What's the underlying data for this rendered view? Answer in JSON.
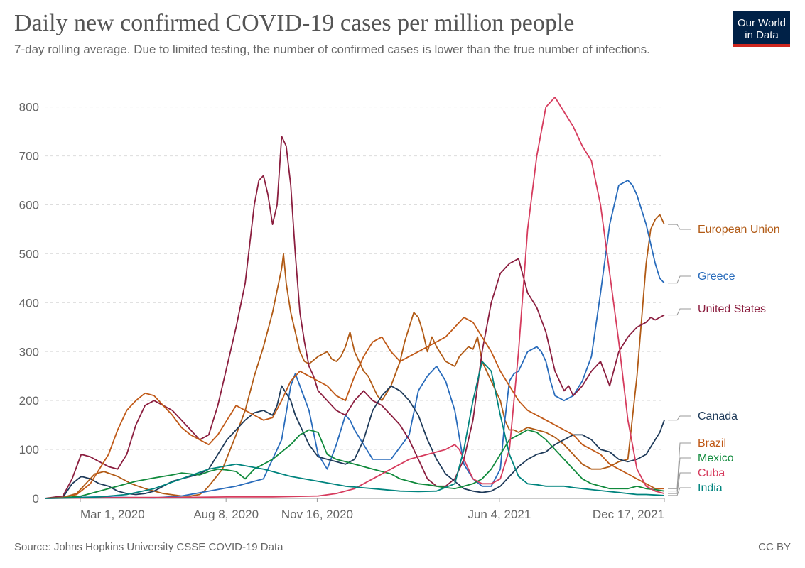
{
  "title": "Daily new confirmed COVID-19 cases per million people",
  "subtitle": "7-day rolling average. Due to limited testing, the number of confirmed cases is lower than the true number of infections.",
  "logo": {
    "line1": "Our World",
    "line2": "in Data"
  },
  "source": "Source: Johns Hopkins University CSSE COVID-19 Data",
  "license": "CC BY",
  "chart_data": {
    "type": "line",
    "title": "Daily new confirmed COVID-19 cases per million people",
    "xlabel": "",
    "ylabel": "",
    "ylim": [
      0,
      830
    ],
    "xlim": [
      0,
      680
    ],
    "x_unit": "days since 2020-01-22",
    "yticks": [
      0,
      100,
      200,
      300,
      400,
      500,
      600,
      700,
      800
    ],
    "xticks": [
      {
        "label": "Mar 1, 2020",
        "x": 39
      },
      {
        "label": "Aug 8, 2020",
        "x": 199
      },
      {
        "label": "Nov 16, 2020",
        "x": 299
      },
      {
        "label": "Jun 4, 2021",
        "x": 499
      },
      {
        "label": "Dec 17, 2021",
        "x": 695
      }
    ],
    "series": [
      {
        "name": "European Union",
        "color": "#b15a15",
        "x": [
          0,
          20,
          35,
          45,
          55,
          65,
          80,
          95,
          110,
          130,
          150,
          160,
          170,
          175,
          180,
          195,
          210,
          220,
          230,
          240,
          250,
          260,
          262,
          265,
          270,
          275,
          280,
          285,
          290,
          300,
          310,
          315,
          320,
          325,
          330,
          335,
          340,
          345,
          350,
          355,
          360,
          365,
          370,
          380,
          390,
          395,
          400,
          405,
          410,
          415,
          420,
          425,
          430,
          440,
          450,
          455,
          460,
          465,
          470,
          475,
          480,
          490,
          500,
          505,
          510,
          515,
          520,
          525,
          530,
          540,
          550,
          560,
          570,
          580,
          590,
          600,
          610,
          620,
          630,
          640,
          650,
          660,
          665,
          670,
          675,
          680
        ],
        "y": [
          0,
          2,
          10,
          30,
          50,
          55,
          45,
          30,
          20,
          10,
          5,
          5,
          8,
          15,
          25,
          60,
          130,
          180,
          250,
          310,
          380,
          470,
          500,
          440,
          380,
          340,
          300,
          280,
          275,
          290,
          300,
          285,
          280,
          290,
          310,
          340,
          300,
          280,
          260,
          250,
          230,
          210,
          200,
          230,
          280,
          320,
          350,
          380,
          370,
          340,
          300,
          330,
          310,
          280,
          270,
          290,
          300,
          310,
          305,
          330,
          280,
          240,
          200,
          160,
          140,
          140,
          135,
          140,
          145,
          140,
          135,
          125,
          110,
          90,
          70,
          60,
          60,
          65,
          75,
          80,
          250,
          480,
          550,
          570,
          580,
          560
        ],
        "label": "European Union"
      },
      {
        "name": "Greece",
        "color": "#286bbb",
        "x": [
          0,
          30,
          60,
          90,
          120,
          150,
          180,
          210,
          240,
          260,
          270,
          275,
          280,
          290,
          300,
          305,
          310,
          320,
          330,
          335,
          340,
          350,
          360,
          380,
          400,
          410,
          420,
          430,
          440,
          450,
          460,
          470,
          480,
          490,
          500,
          505,
          510,
          515,
          520,
          525,
          530,
          540,
          545,
          550,
          555,
          560,
          570,
          580,
          590,
          600,
          610,
          620,
          630,
          640,
          645,
          650,
          660,
          665,
          670,
          675,
          680
        ],
        "y": [
          0,
          2,
          3,
          2,
          1,
          5,
          15,
          25,
          40,
          120,
          230,
          255,
          230,
          180,
          90,
          75,
          60,
          110,
          170,
          160,
          140,
          110,
          80,
          80,
          130,
          220,
          250,
          270,
          240,
          180,
          70,
          40,
          25,
          25,
          60,
          160,
          240,
          255,
          260,
          280,
          300,
          310,
          300,
          280,
          240,
          210,
          200,
          210,
          240,
          290,
          420,
          560,
          640,
          650,
          640,
          620,
          560,
          520,
          480,
          450,
          440
        ],
        "label": "Greece"
      },
      {
        "name": "United States",
        "color": "#8b1e3f",
        "x": [
          0,
          20,
          30,
          40,
          50,
          60,
          70,
          80,
          90,
          100,
          110,
          120,
          130,
          140,
          150,
          160,
          170,
          180,
          190,
          200,
          210,
          220,
          225,
          230,
          235,
          240,
          245,
          250,
          255,
          260,
          265,
          270,
          275,
          280,
          285,
          290,
          295,
          300,
          310,
          315,
          320,
          330,
          340,
          350,
          360,
          370,
          380,
          390,
          400,
          410,
          420,
          430,
          440,
          450,
          460,
          470,
          480,
          490,
          500,
          510,
          520,
          530,
          540,
          550,
          560,
          570,
          575,
          580,
          590,
          600,
          610,
          620,
          630,
          640,
          650,
          660,
          665,
          670,
          675,
          680
        ],
        "y": [
          0,
          5,
          40,
          90,
          85,
          75,
          65,
          60,
          90,
          150,
          190,
          200,
          190,
          180,
          160,
          140,
          120,
          130,
          190,
          270,
          350,
          440,
          520,
          600,
          650,
          660,
          620,
          560,
          600,
          740,
          720,
          640,
          500,
          380,
          320,
          270,
          250,
          220,
          200,
          190,
          180,
          170,
          200,
          220,
          200,
          190,
          170,
          150,
          120,
          80,
          40,
          25,
          25,
          40,
          80,
          160,
          300,
          400,
          460,
          480,
          490,
          420,
          390,
          340,
          260,
          220,
          230,
          210,
          230,
          260,
          280,
          230,
          300,
          330,
          350,
          360,
          370,
          365,
          370,
          375
        ],
        "label": "United States"
      },
      {
        "name": "Canada",
        "color": "#1f3b5a",
        "x": [
          0,
          20,
          30,
          40,
          50,
          60,
          70,
          80,
          90,
          100,
          110,
          120,
          130,
          140,
          150,
          160,
          170,
          180,
          190,
          200,
          210,
          220,
          230,
          240,
          250,
          255,
          260,
          265,
          270,
          275,
          280,
          290,
          300,
          310,
          320,
          330,
          340,
          350,
          360,
          370,
          380,
          390,
          400,
          410,
          420,
          430,
          440,
          450,
          460,
          470,
          480,
          490,
          500,
          510,
          520,
          530,
          540,
          550,
          560,
          570,
          580,
          590,
          600,
          610,
          620,
          630,
          640,
          650,
          660,
          665,
          670,
          675,
          680
        ],
        "y": [
          0,
          2,
          30,
          45,
          40,
          30,
          25,
          15,
          10,
          8,
          10,
          15,
          25,
          35,
          40,
          45,
          50,
          60,
          90,
          120,
          140,
          160,
          175,
          180,
          170,
          190,
          230,
          215,
          200,
          170,
          150,
          110,
          85,
          80,
          75,
          70,
          80,
          120,
          180,
          210,
          230,
          220,
          200,
          170,
          120,
          80,
          50,
          35,
          20,
          15,
          12,
          15,
          25,
          45,
          65,
          80,
          90,
          95,
          110,
          120,
          130,
          130,
          120,
          100,
          95,
          80,
          75,
          80,
          90,
          105,
          120,
          135,
          160
        ],
        "label": "Canada"
      },
      {
        "name": "Brazil",
        "color": "#c05917",
        "x": [
          0,
          20,
          35,
          50,
          60,
          70,
          80,
          90,
          100,
          110,
          120,
          130,
          140,
          150,
          160,
          170,
          180,
          190,
          200,
          210,
          220,
          230,
          240,
          250,
          260,
          270,
          280,
          290,
          300,
          310,
          320,
          330,
          340,
          350,
          360,
          370,
          380,
          390,
          400,
          410,
          420,
          430,
          440,
          450,
          460,
          470,
          480,
          490,
          500,
          510,
          520,
          530,
          540,
          550,
          560,
          570,
          580,
          590,
          600,
          610,
          620,
          630,
          640,
          650,
          660,
          670,
          680
        ],
        "y": [
          0,
          2,
          8,
          30,
          60,
          90,
          140,
          180,
          200,
          215,
          210,
          190,
          170,
          145,
          130,
          120,
          110,
          130,
          160,
          190,
          180,
          170,
          160,
          165,
          200,
          240,
          260,
          250,
          240,
          230,
          210,
          200,
          250,
          290,
          320,
          330,
          300,
          280,
          290,
          300,
          310,
          320,
          330,
          350,
          370,
          360,
          330,
          300,
          260,
          230,
          200,
          180,
          170,
          160,
          150,
          140,
          130,
          110,
          100,
          90,
          70,
          60,
          50,
          40,
          30,
          20,
          20
        ],
        "label": "Brazil"
      },
      {
        "name": "Mexico",
        "color": "#108a3c",
        "x": [
          0,
          20,
          40,
          60,
          80,
          100,
          120,
          140,
          150,
          160,
          170,
          180,
          190,
          200,
          210,
          220,
          230,
          240,
          250,
          260,
          270,
          280,
          290,
          300,
          310,
          320,
          330,
          340,
          350,
          360,
          370,
          380,
          390,
          400,
          410,
          420,
          430,
          440,
          450,
          460,
          470,
          480,
          490,
          500,
          510,
          520,
          530,
          540,
          550,
          560,
          570,
          580,
          590,
          600,
          610,
          620,
          630,
          640,
          650,
          660,
          670,
          680
        ],
        "y": [
          0,
          1,
          5,
          15,
          25,
          35,
          42,
          48,
          52,
          50,
          48,
          55,
          60,
          58,
          55,
          40,
          60,
          70,
          80,
          95,
          110,
          130,
          140,
          135,
          90,
          80,
          75,
          70,
          65,
          60,
          55,
          50,
          40,
          35,
          30,
          28,
          25,
          22,
          20,
          25,
          30,
          40,
          60,
          90,
          120,
          130,
          140,
          135,
          120,
          100,
          80,
          60,
          40,
          30,
          25,
          20,
          20,
          20,
          25,
          20,
          18,
          15
        ],
        "label": "Mexico"
      },
      {
        "name": "Cuba",
        "color": "#d63c5e",
        "x": [
          0,
          50,
          100,
          150,
          200,
          250,
          300,
          320,
          340,
          360,
          380,
          400,
          420,
          440,
          450,
          455,
          460,
          465,
          470,
          480,
          490,
          500,
          510,
          520,
          530,
          540,
          550,
          560,
          570,
          580,
          590,
          600,
          610,
          620,
          630,
          640,
          650,
          660,
          670,
          680
        ],
        "y": [
          0,
          1,
          2,
          2,
          3,
          3,
          5,
          10,
          20,
          40,
          60,
          80,
          90,
          100,
          110,
          100,
          80,
          60,
          40,
          30,
          30,
          40,
          100,
          300,
          550,
          700,
          800,
          820,
          790,
          760,
          720,
          690,
          600,
          460,
          320,
          160,
          60,
          25,
          15,
          10
        ],
        "label": "Cuba"
      },
      {
        "name": "India",
        "color": "#00847e",
        "x": [
          0,
          30,
          60,
          90,
          120,
          150,
          180,
          210,
          240,
          270,
          300,
          330,
          360,
          390,
          410,
          430,
          450,
          460,
          470,
          480,
          490,
          500,
          510,
          520,
          530,
          540,
          550,
          560,
          570,
          580,
          590,
          600,
          610,
          620,
          630,
          640,
          650,
          660,
          670,
          680
        ],
        "y": [
          0,
          1,
          3,
          8,
          20,
          40,
          60,
          70,
          60,
          45,
          35,
          25,
          20,
          15,
          14,
          15,
          30,
          100,
          200,
          280,
          260,
          170,
          90,
          45,
          30,
          28,
          25,
          25,
          25,
          22,
          20,
          18,
          16,
          14,
          12,
          10,
          8,
          8,
          7,
          6
        ],
        "label": "India"
      }
    ],
    "legend": "right-end labels"
  }
}
